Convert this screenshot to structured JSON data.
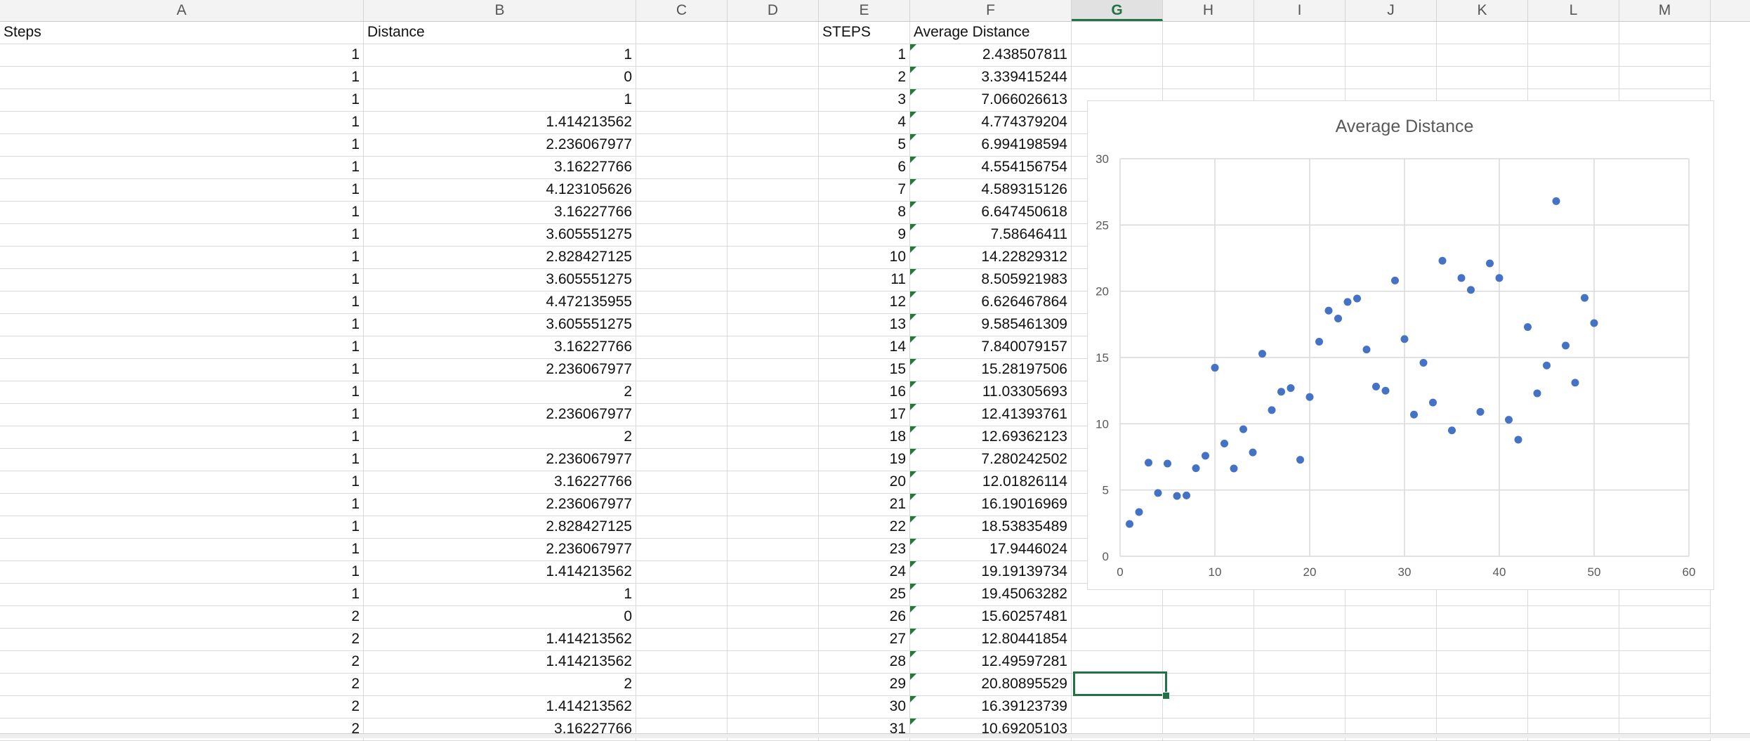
{
  "columns": [
    "A",
    "B",
    "C",
    "D",
    "E",
    "F",
    "G",
    "H",
    "I",
    "J",
    "K",
    "L",
    "M"
  ],
  "active_column": "G",
  "headers": {
    "a": "Steps",
    "b": "Distance",
    "e": "STEPS",
    "f": "Average Distance"
  },
  "rows": [
    {
      "a": "1",
      "b": "1",
      "e": "1",
      "f": "2.438507811"
    },
    {
      "a": "1",
      "b": "0",
      "e": "2",
      "f": "3.339415244"
    },
    {
      "a": "1",
      "b": "1",
      "e": "3",
      "f": "7.066026613"
    },
    {
      "a": "1",
      "b": "1.414213562",
      "e": "4",
      "f": "4.774379204"
    },
    {
      "a": "1",
      "b": "2.236067977",
      "e": "5",
      "f": "6.994198594"
    },
    {
      "a": "1",
      "b": "3.16227766",
      "e": "6",
      "f": "4.554156754"
    },
    {
      "a": "1",
      "b": "4.123105626",
      "e": "7",
      "f": "4.589315126"
    },
    {
      "a": "1",
      "b": "3.16227766",
      "e": "8",
      "f": "6.647450618"
    },
    {
      "a": "1",
      "b": "3.605551275",
      "e": "9",
      "f": "7.58646411"
    },
    {
      "a": "1",
      "b": "2.828427125",
      "e": "10",
      "f": "14.22829312"
    },
    {
      "a": "1",
      "b": "3.605551275",
      "e": "11",
      "f": "8.505921983"
    },
    {
      "a": "1",
      "b": "4.472135955",
      "e": "12",
      "f": "6.626467864"
    },
    {
      "a": "1",
      "b": "3.605551275",
      "e": "13",
      "f": "9.585461309"
    },
    {
      "a": "1",
      "b": "3.16227766",
      "e": "14",
      "f": "7.840079157"
    },
    {
      "a": "1",
      "b": "2.236067977",
      "e": "15",
      "f": "15.28197506"
    },
    {
      "a": "1",
      "b": "2",
      "e": "16",
      "f": "11.03305693"
    },
    {
      "a": "1",
      "b": "2.236067977",
      "e": "17",
      "f": "12.41393761"
    },
    {
      "a": "1",
      "b": "2",
      "e": "18",
      "f": "12.69362123"
    },
    {
      "a": "1",
      "b": "2.236067977",
      "e": "19",
      "f": "7.280242502"
    },
    {
      "a": "1",
      "b": "3.16227766",
      "e": "20",
      "f": "12.01826114"
    },
    {
      "a": "1",
      "b": "2.236067977",
      "e": "21",
      "f": "16.19016969"
    },
    {
      "a": "1",
      "b": "2.828427125",
      "e": "22",
      "f": "18.53835489"
    },
    {
      "a": "1",
      "b": "2.236067977",
      "e": "23",
      "f": "17.9446024"
    },
    {
      "a": "1",
      "b": "1.414213562",
      "e": "24",
      "f": "19.19139734"
    },
    {
      "a": "1",
      "b": "1",
      "e": "25",
      "f": "19.45063282"
    },
    {
      "a": "2",
      "b": "0",
      "e": "26",
      "f": "15.60257481"
    },
    {
      "a": "2",
      "b": "1.414213562",
      "e": "27",
      "f": "12.80441854"
    },
    {
      "a": "2",
      "b": "1.414213562",
      "e": "28",
      "f": "12.49597281"
    },
    {
      "a": "2",
      "b": "2",
      "e": "29",
      "f": "20.80895529"
    },
    {
      "a": "2",
      "b": "1.414213562",
      "e": "30",
      "f": "16.39123739"
    },
    {
      "a": "2",
      "b": "3.16227766",
      "e": "31",
      "f": "10.69205103"
    }
  ],
  "colors": {
    "accent": "#217346",
    "marker": "#4472c4"
  },
  "chart_data": {
    "type": "scatter",
    "title": "Average Distance",
    "xlabel": "",
    "ylabel": "",
    "xlim": [
      0,
      60
    ],
    "ylim": [
      0,
      30
    ],
    "x_ticks": [
      "0",
      "10",
      "20",
      "30",
      "40",
      "50",
      "60"
    ],
    "y_ticks": [
      "0",
      "5",
      "10",
      "15",
      "20",
      "25",
      "30"
    ],
    "grid": true,
    "legend": "none",
    "x": [
      1,
      2,
      3,
      4,
      5,
      6,
      7,
      8,
      9,
      10,
      11,
      12,
      13,
      14,
      15,
      16,
      17,
      18,
      19,
      20,
      21,
      22,
      23,
      24,
      25,
      26,
      27,
      28,
      29,
      30,
      31,
      32,
      33,
      34,
      35,
      36,
      37,
      38,
      39,
      40,
      41,
      42,
      43,
      44,
      45,
      46,
      47,
      48,
      49,
      50
    ],
    "y": [
      2.438507811,
      3.339415244,
      7.066026613,
      4.774379204,
      6.994198594,
      4.554156754,
      4.589315126,
      6.647450618,
      7.58646411,
      14.22829312,
      8.505921983,
      6.626467864,
      9.585461309,
      7.840079157,
      15.28197506,
      11.03305693,
      12.41393761,
      12.69362123,
      7.280242502,
      12.01826114,
      16.19016969,
      18.53835489,
      17.9446024,
      19.19139734,
      19.45063282,
      15.60257481,
      12.80441854,
      12.49597281,
      20.80895529,
      16.39123739,
      10.69205103,
      14.6,
      11.6,
      22.3,
      9.5,
      21.0,
      20.1,
      10.9,
      22.1,
      21.0,
      10.3,
      8.8,
      17.3,
      12.3,
      14.4,
      26.8,
      15.9,
      13.1,
      19.5,
      17.6
    ]
  }
}
